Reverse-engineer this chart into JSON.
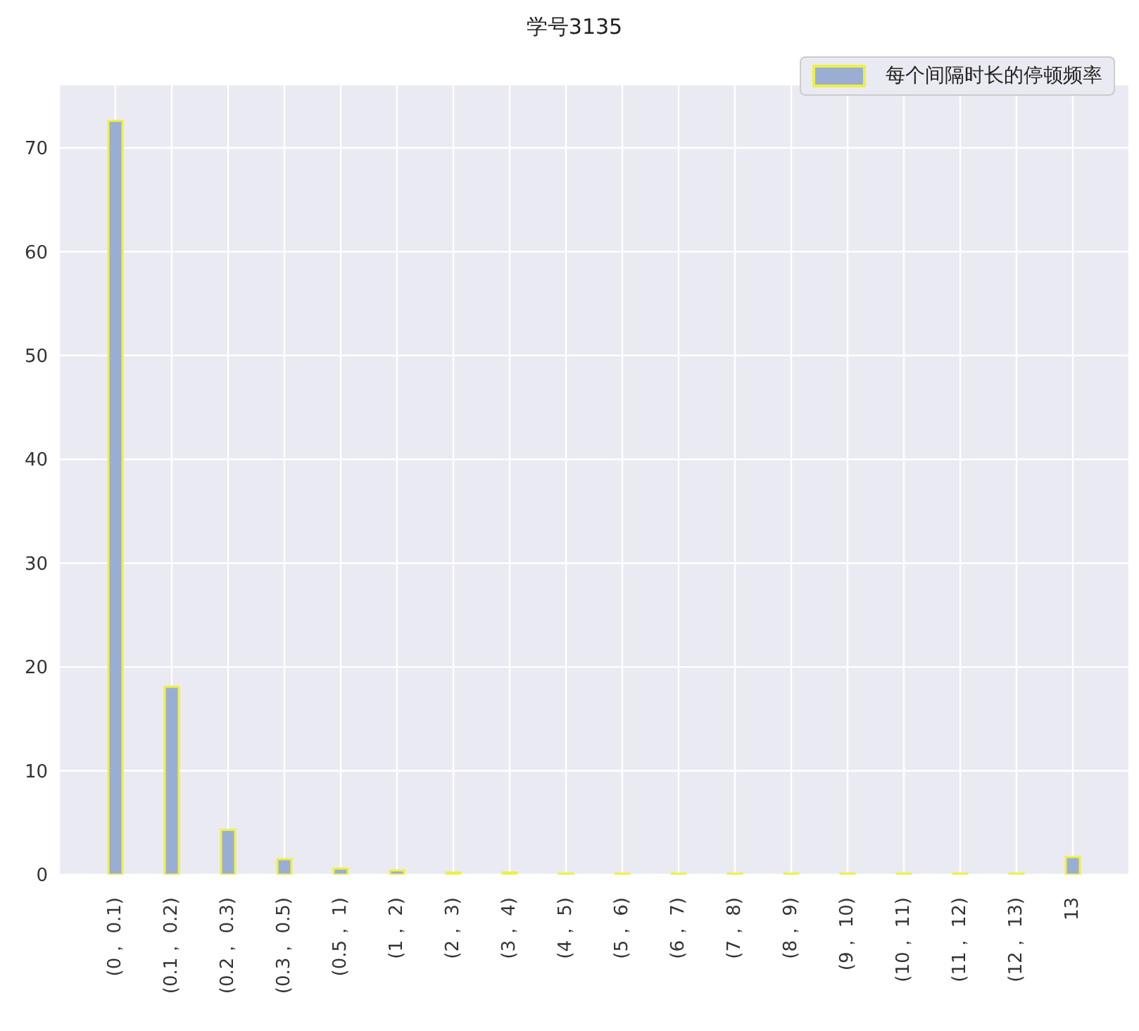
{
  "chart_data": {
    "type": "bar",
    "title": "学号3135",
    "categories": [
      "(0， 0.1)",
      "(0.1， 0.2)",
      "(0.2， 0.3)",
      "(0.3， 0.5)",
      "(0.5， 1)",
      "(1， 2)",
      "(2， 3)",
      "(3， 4)",
      "(4， 5)",
      "(5， 6)",
      "(6， 7)",
      "(7， 8)",
      "(8， 9)",
      "(9， 10)",
      "(10， 11)",
      "(11， 12)",
      "(12， 13)",
      "13"
    ],
    "series": [
      {
        "name": "每个间隔时长的停顿频率",
        "color": "#9aaed4",
        "values": [
          72.6,
          18.1,
          4.3,
          1.5,
          0.6,
          0.4,
          0.2,
          0.2,
          0.1,
          0.1,
          0.1,
          0.1,
          0.1,
          0.1,
          0.1,
          0.1,
          0.1,
          1.7
        ]
      }
    ],
    "ylim": [
      0,
      76.1
    ],
    "yticks": [
      0,
      10,
      20,
      30,
      40,
      50,
      60,
      70
    ],
    "grid": true,
    "legend": "top right"
  }
}
